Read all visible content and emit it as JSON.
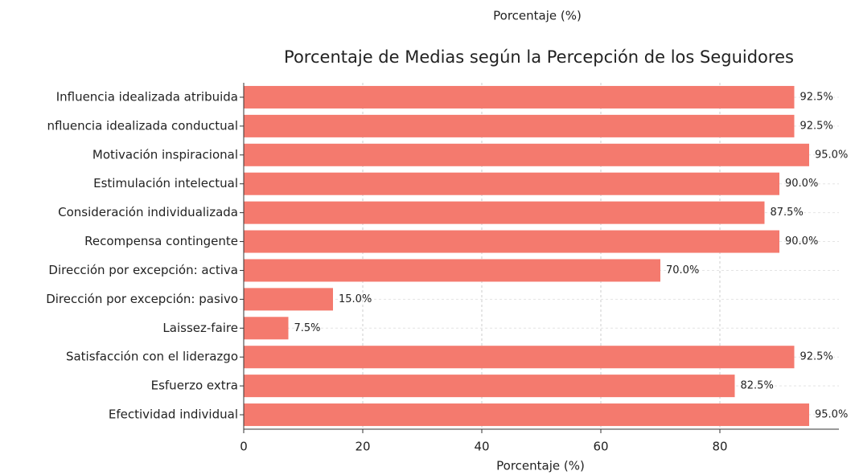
{
  "chart_data": {
    "type": "barh",
    "top_label": "Porcentaje (%)",
    "title": "Porcentaje de Medias según la Percepción de los Seguidores",
    "xlabel": "Porcentaje (%)",
    "categories": [
      "Influencia idealizada atribuida",
      "nfluencia idealizada conductual",
      "Motivación inspiracional",
      "Estimulación intelectual",
      "Consideración individualizada",
      "Recompensa contingente",
      "Dirección por excepción: activa",
      "Dirección por excepción: pasivo",
      "Laissez-faire",
      "Satisfacción con el liderazgo",
      "Esfuerzo extra",
      "Efectividad individual"
    ],
    "values": [
      92.5,
      92.5,
      95.0,
      90.0,
      87.5,
      90.0,
      70.0,
      15.0,
      7.5,
      92.5,
      82.5,
      95.0
    ],
    "value_labels": [
      "92.5%",
      "92.5%",
      "95.0%",
      "90.0%",
      "87.5%",
      "90.0%",
      "70.0%",
      "15.0%",
      "7.5%",
      "92.5%",
      "82.5%",
      "95.0%"
    ],
    "color": "#f47a6e",
    "xlim": [
      0,
      100
    ],
    "xticks": [
      0,
      20,
      40,
      60,
      80
    ],
    "grid": true
  }
}
